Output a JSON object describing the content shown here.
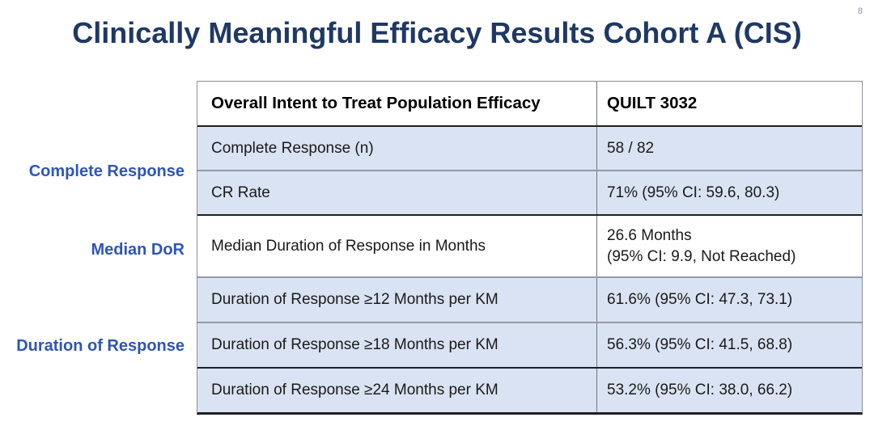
{
  "page": {
    "number": "8"
  },
  "title": "Clinically Meaningful Efficacy Results Cohort A (CIS)",
  "side_labels": [
    {
      "label": "Complete Response"
    },
    {
      "label": "Median DoR"
    },
    {
      "label": "Duration of Response"
    }
  ],
  "table": {
    "header": {
      "col1": "Overall Intent to Treat Population Efficacy",
      "col2": "QUILT 3032"
    },
    "rows": [
      {
        "label": "Complete Response (n)",
        "value": "58 / 82",
        "value2": ""
      },
      {
        "label": "CR Rate",
        "value": "71% (95% CI: 59.6, 80.3)",
        "value2": ""
      },
      {
        "label": "Median Duration of Response in Months",
        "value": "26.6 Months",
        "value2": "(95% CI: 9.9, Not Reached)"
      },
      {
        "label": "Duration of Response ≥12 Months per KM",
        "value": "61.6% (95% CI: 47.3, 73.1)",
        "value2": ""
      },
      {
        "label": "Duration of Response ≥18 Months per KM",
        "value": "56.3% (95% CI: 41.5, 68.8)",
        "value2": ""
      },
      {
        "label": "Duration of Response ≥24 Months per KM",
        "value": "53.2% (95% CI: 38.0, 66.2)",
        "value2": ""
      }
    ]
  },
  "colors": {
    "title_text": "#1F3864",
    "side_label_text": "#2E55B8",
    "row_fill_blue": "#DAE3F3",
    "dark_rule": "#1F1F1F",
    "gray_rule": "#959BA5",
    "page_number": "#8593AD"
  }
}
